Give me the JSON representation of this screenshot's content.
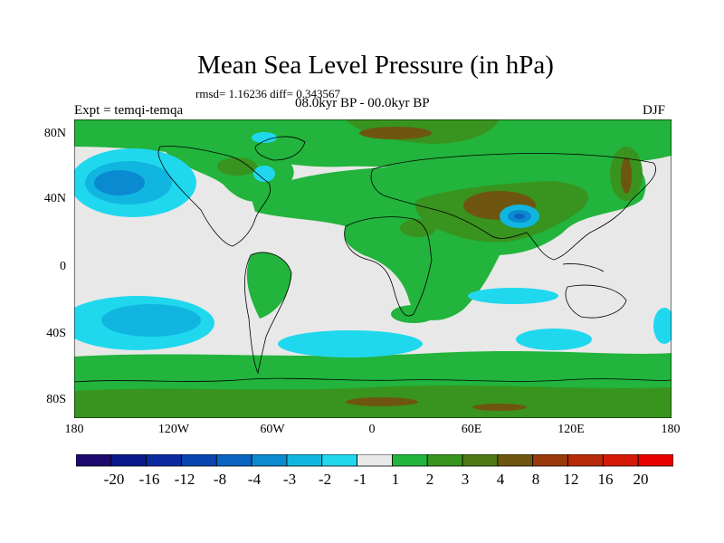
{
  "title": "Mean Sea Level Pressure (in hPa)",
  "stats": "rmsd= 1.16236 diff= 0.343567",
  "experiment": "Expt = temqi-temqa",
  "period": "08.0kyr BP - 00.0kyr BP",
  "season": "DJF",
  "lat_labels": [
    "80N",
    "40N",
    "0",
    "40S",
    "80S"
  ],
  "lon_labels": [
    "180",
    "120W",
    "60W",
    "0",
    "60E",
    "120E",
    "180"
  ],
  "colorbar": {
    "labels": [
      "-20",
      "-16",
      "-12",
      "-8",
      "-4",
      "-3",
      "-2",
      "-1",
      "1",
      "2",
      "3",
      "4",
      "8",
      "12",
      "16",
      "20"
    ],
    "colors": [
      "#1e0a6e",
      "#0a1a8c",
      "#0c2aa0",
      "#0a46b0",
      "#0a64c0",
      "#0a8ad0",
      "#10b6e0",
      "#20d8ee",
      "#e8e8e8",
      "#22b43c",
      "#38941e",
      "#4e7a14",
      "#6e5610",
      "#9a3a0a",
      "#b82a08",
      "#d41a06",
      "#e80000"
    ]
  },
  "map_colors": {
    "ocean_neutral": "#e8e8e8",
    "green_2": "#22b43c",
    "green_3": "#38941e",
    "olive_4": "#6e5610",
    "cyan_m2": "#20d8ee",
    "cyan_m3": "#10b6e0",
    "blue_m4": "#0a8ad0",
    "blue_m8": "#0a64c0"
  }
}
